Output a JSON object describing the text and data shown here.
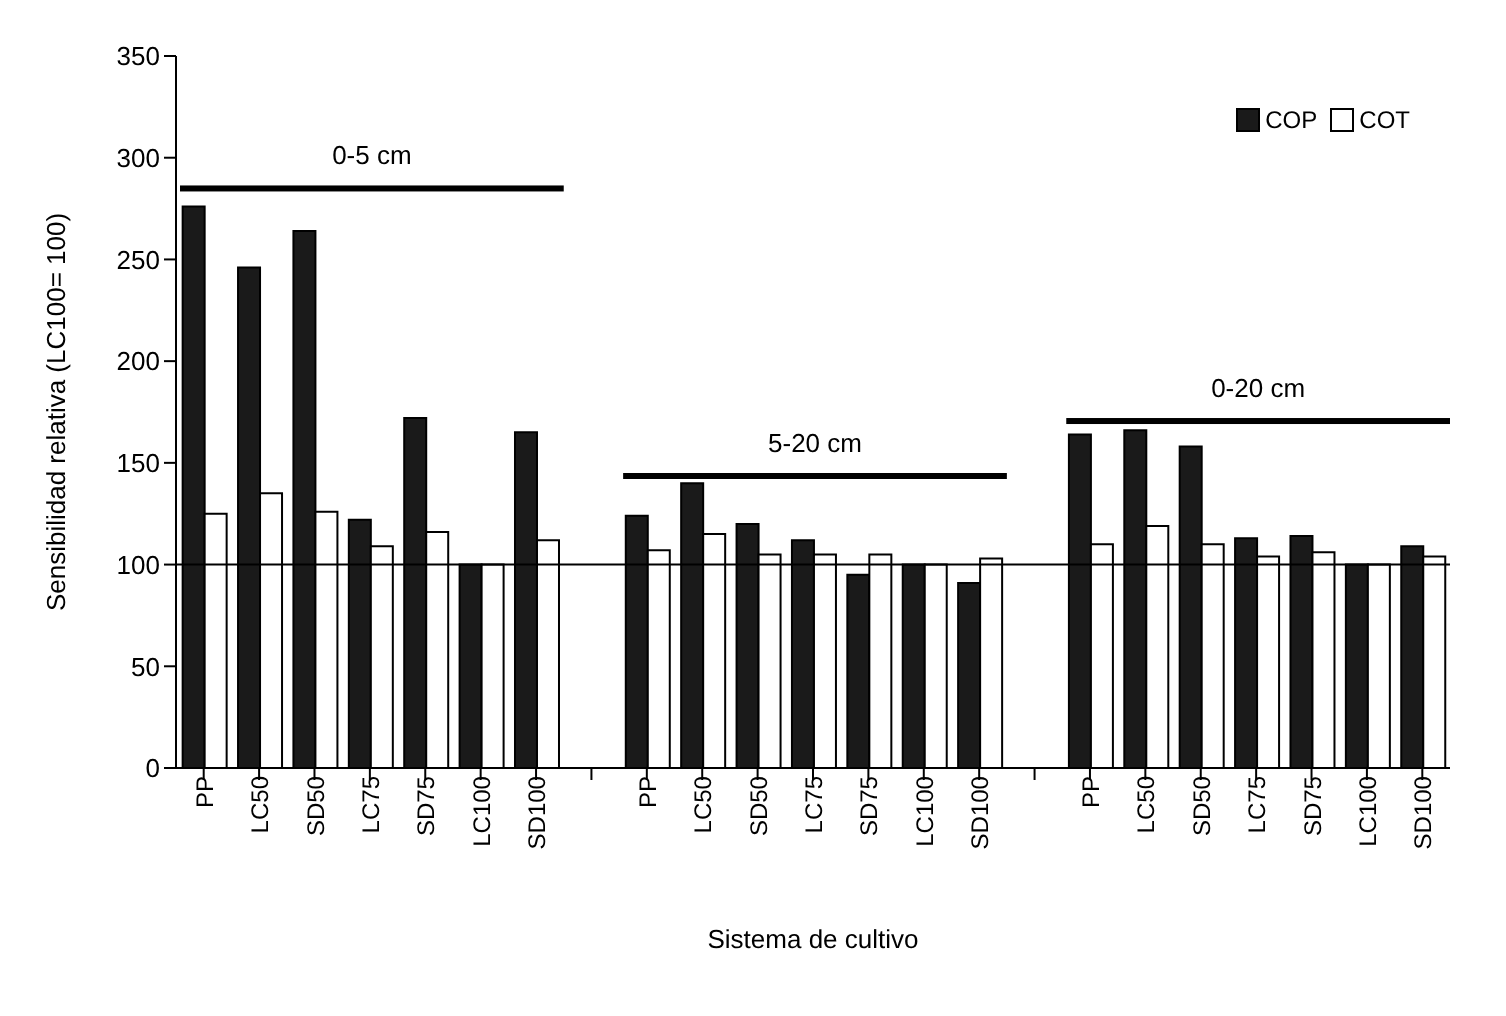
{
  "chart_data": {
    "type": "bar",
    "xlabel": "Sistema de cultivo",
    "ylabel": "Sensibilidad relativa (LC100= 100)",
    "categories": [
      "PP",
      "LC50",
      "SD50",
      "LC75",
      "SD75",
      "LC100",
      "SD100",
      null,
      "PP",
      "LC50",
      "SD50",
      "LC75",
      "SD75",
      "LC100",
      "SD100",
      null,
      "PP",
      "LC50",
      "SD50",
      "LC75",
      "SD75",
      "LC100",
      "SD100"
    ],
    "series": [
      {
        "name": "COP",
        "color": "#1a1a1a",
        "values": [
          276,
          246,
          264,
          122,
          172,
          100,
          165,
          null,
          124,
          140,
          120,
          112,
          95,
          100,
          91,
          null,
          164,
          166,
          158,
          113,
          114,
          100,
          109
        ]
      },
      {
        "name": "COT",
        "color": "#ffffff",
        "values": [
          125,
          135,
          126,
          109,
          116,
          100,
          112,
          null,
          107,
          115,
          105,
          105,
          105,
          100,
          103,
          null,
          110,
          119,
          110,
          104,
          106,
          100,
          104
        ]
      }
    ],
    "ylim": [
      0,
      350
    ],
    "yticks": [
      0,
      50,
      100,
      150,
      200,
      250,
      300,
      350
    ],
    "legend": "top right",
    "ref_lines": [
      {
        "axis": "y",
        "value": 100,
        "color": "#000000"
      }
    ],
    "annotations": [
      "0-5 cm",
      "5-20 cm",
      "0-20 cm"
    ]
  }
}
